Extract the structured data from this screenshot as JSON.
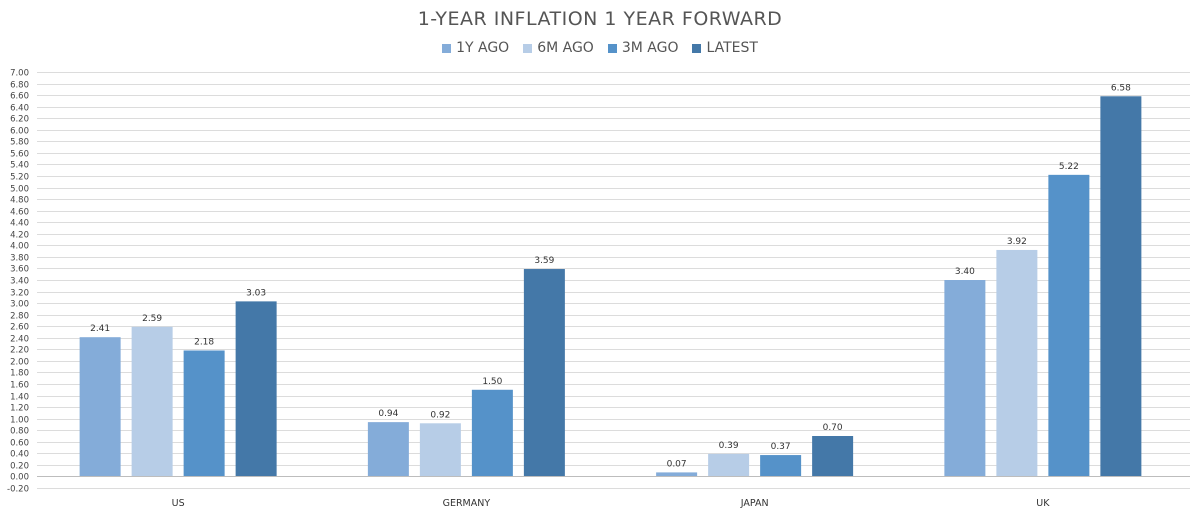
{
  "chart_data": {
    "type": "bar",
    "title": "1-YEAR INFLATION 1 YEAR FORWARD",
    "categories": [
      "US",
      "GERMANY",
      "JAPAN",
      "UK"
    ],
    "series": [
      {
        "name": "1Y AGO",
        "color": "#84acd9",
        "values": [
          2.41,
          0.94,
          0.07,
          3.4
        ]
      },
      {
        "name": "6M AGO",
        "color": "#b7cde7",
        "values": [
          2.59,
          0.92,
          0.39,
          3.92
        ]
      },
      {
        "name": "3M AGO",
        "color": "#5592c9",
        "values": [
          2.18,
          1.5,
          0.37,
          5.22
        ]
      },
      {
        "name": "LATEST",
        "color": "#4478a8",
        "values": [
          3.03,
          3.59,
          0.7,
          6.58
        ]
      }
    ],
    "ylim": [
      -0.2,
      7.0
    ],
    "ytick_step": 0.2,
    "legend_position": "top-center",
    "grid": true
  }
}
